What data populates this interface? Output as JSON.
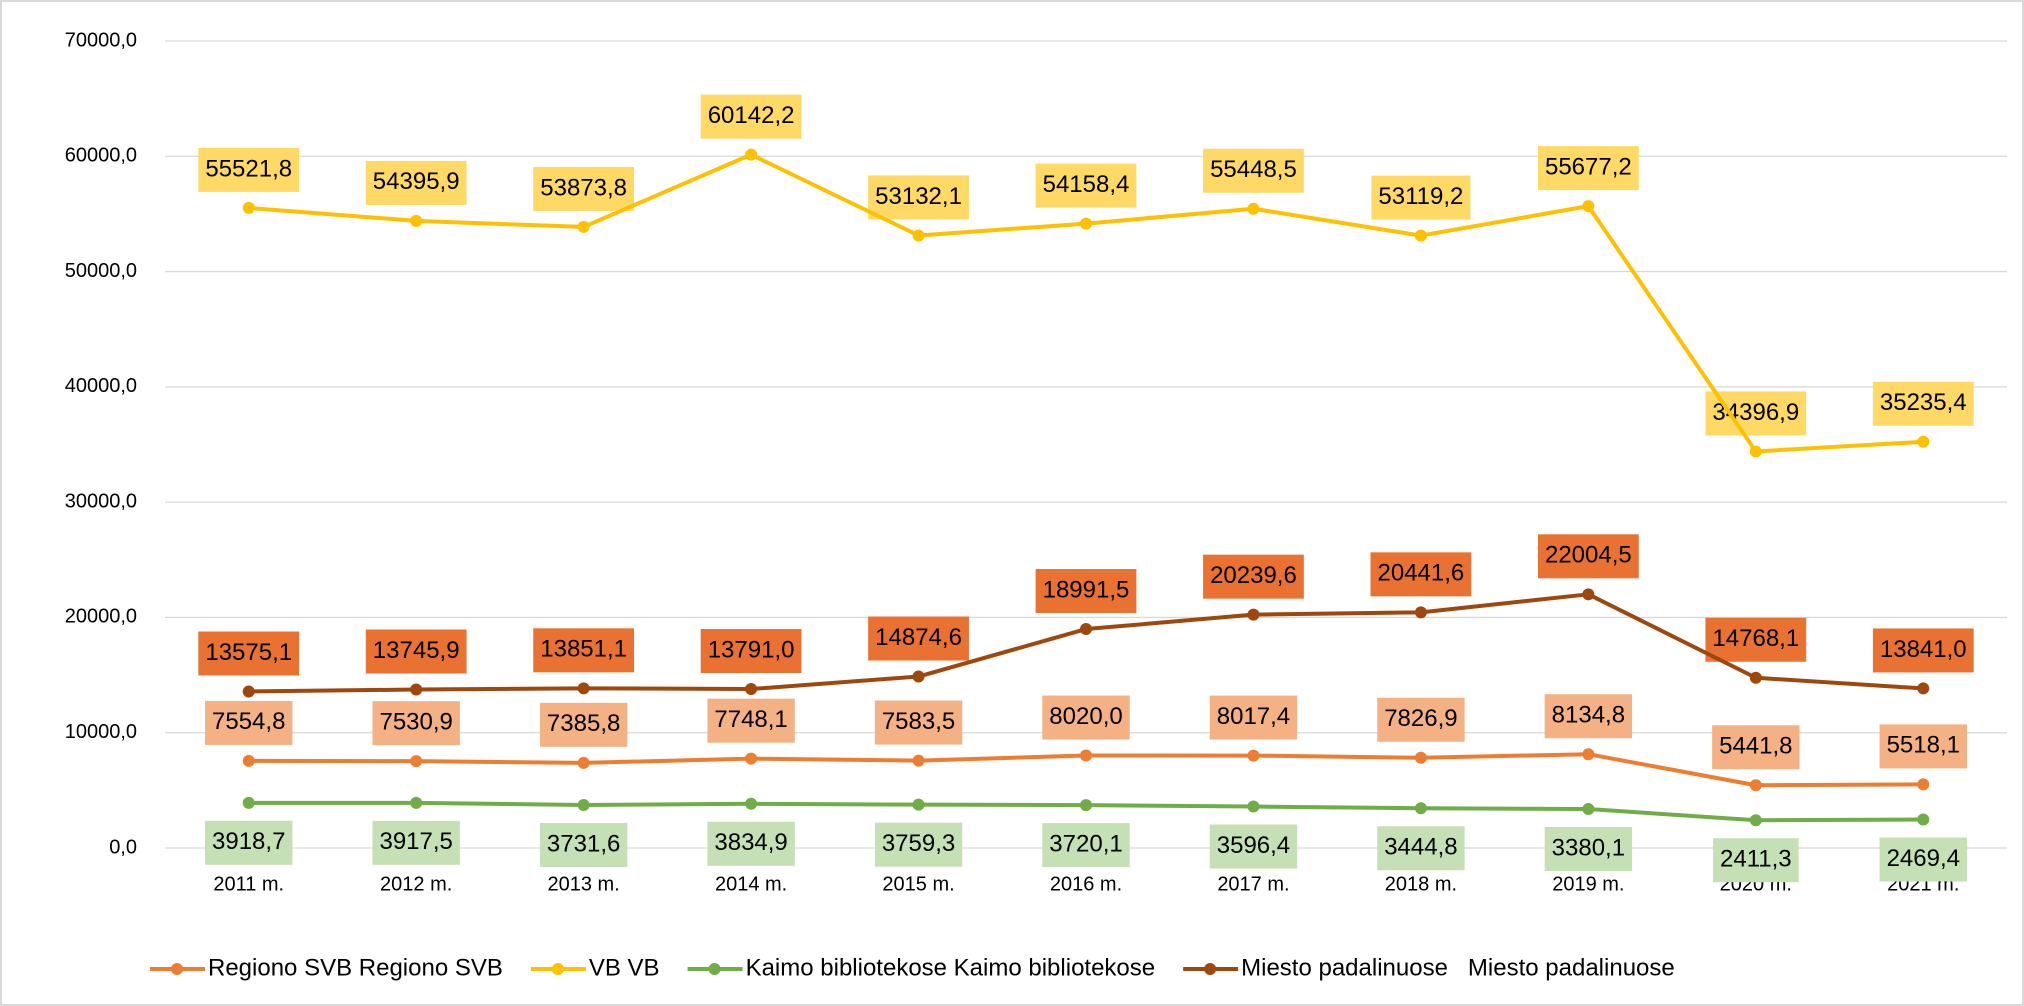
{
  "chart_data": {
    "type": "line",
    "categories": [
      "2011 m.",
      "2012 m.",
      "2013 m.",
      "2014 m.",
      "2015 m.",
      "2016 m.",
      "2017 m.",
      "2018 m.",
      "2019 m.",
      "2020 m.",
      "2021 m."
    ],
    "ylim": [
      0,
      70000
    ],
    "yticks": [
      {
        "value": 0,
        "label": "0,0"
      },
      {
        "value": 10000,
        "label": "10000,0"
      },
      {
        "value": 20000,
        "label": "20000,0"
      },
      {
        "value": 30000,
        "label": "30000,0"
      },
      {
        "value": 40000,
        "label": "40000,0"
      },
      {
        "value": 50000,
        "label": "50000,0"
      },
      {
        "value": 60000,
        "label": "60000,0"
      },
      {
        "value": 70000,
        "label": "70000,0"
      }
    ],
    "grid": true,
    "legend": "bottom",
    "series": [
      {
        "name": "Regiono SVB Regiono SVB",
        "color": "#ed7d31",
        "label_color": "#f4b183",
        "values": [
          7554.8,
          7530.9,
          7385.8,
          7748.1,
          7583.5,
          8020.0,
          8017.4,
          7826.9,
          8134.8,
          5441.8,
          5518.1
        ],
        "value_labels": [
          "7554,8",
          "7530,9",
          "7385,8",
          "7748,1",
          "7583,5",
          "8020,0",
          "8017,4",
          "7826,9",
          "8134,8",
          "5441,8",
          "5518,1"
        ]
      },
      {
        "name": "VB VB",
        "color": "#ffc000",
        "label_color": "#ffd966",
        "values": [
          55521.8,
          54395.9,
          53873.8,
          60142.2,
          53132.1,
          54158.4,
          55448.5,
          53119.2,
          55677.2,
          34396.9,
          35235.4
        ],
        "value_labels": [
          "55521,8",
          "54395,9",
          "53873,8",
          "60142,2",
          "53132,1",
          "54158,4",
          "55448,5",
          "53119,2",
          "55677,2",
          "34396,9",
          "35235,4"
        ]
      },
      {
        "name": "Kaimo bibliotekose Kaimo bibliotekose",
        "color": "#70ad47",
        "label_color": "#c5e0b4",
        "values": [
          3918.7,
          3917.5,
          3731.6,
          3834.9,
          3759.3,
          3720.1,
          3596.4,
          3444.8,
          3380.1,
          2411.3,
          2469.4
        ],
        "value_labels": [
          "3918,7",
          "3917,5",
          "3731,6",
          "3834,9",
          "3759,3",
          "3720,1",
          "3596,4",
          "3444,8",
          "3380,1",
          "2411,3",
          "2469,4"
        ]
      },
      {
        "name": "Miesto padalinuose   Miesto padalinuose",
        "color": "#9e480e",
        "label_color": "#e97132",
        "values": [
          13575.1,
          13745.9,
          13851.1,
          13791.0,
          14874.6,
          18991.5,
          20239.6,
          20441.6,
          22004.5,
          14768.1,
          13841.0
        ],
        "value_labels": [
          "13575,1",
          "13745,9",
          "13851,1",
          "13791,0",
          "14874,6",
          "18991,5",
          "20239,6",
          "20441,6",
          "22004,5",
          "14768,1",
          "13841,0"
        ]
      }
    ]
  }
}
